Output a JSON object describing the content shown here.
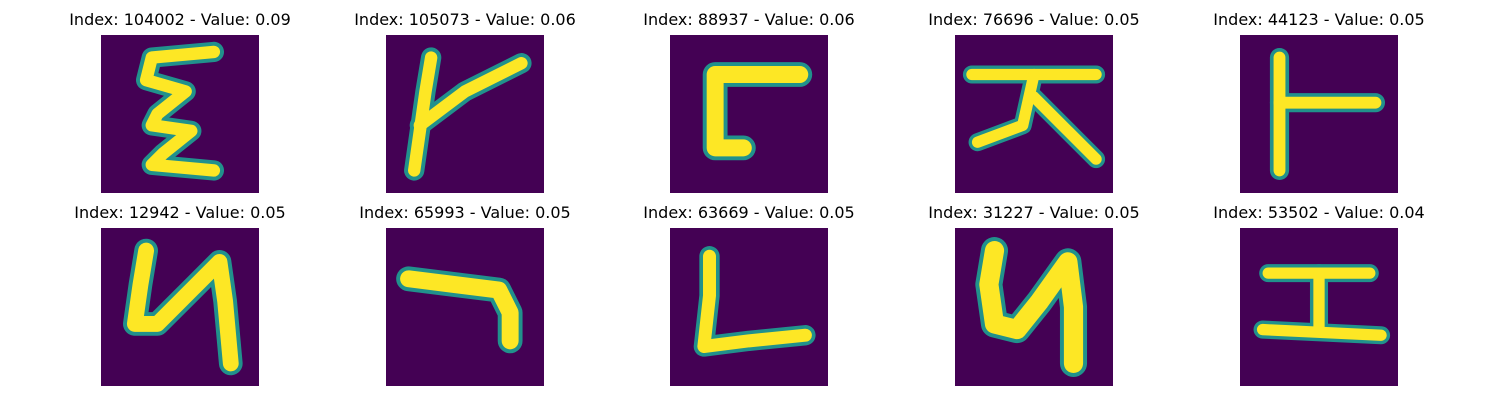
{
  "chart_data": {
    "type": "image-grid",
    "rows": 2,
    "cols": 5,
    "colors": {
      "background": "#440154",
      "stroke": "#fde725",
      "edge": "#21918c"
    },
    "panels": [
      {
        "title": "Index: 104002 - Value: 0.09",
        "index": 104002,
        "value": 0.09,
        "glyph": "Ɛ"
      },
      {
        "title": "Index: 105073 - Value: 0.06",
        "index": 105073,
        "value": 0.06,
        "glyph": "K"
      },
      {
        "title": "Index: 88937 - Value: 0.06",
        "index": 88937,
        "value": 0.06,
        "glyph": "Ⅽ"
      },
      {
        "title": "Index: 76696 - Value: 0.05",
        "index": 76696,
        "value": 0.05,
        "glyph": "天"
      },
      {
        "title": "Index: 44123 - Value: 0.05",
        "index": 44123,
        "value": 0.05,
        "glyph": "⊢"
      },
      {
        "title": "Index: 12942 - Value: 0.05",
        "index": 12942,
        "value": 0.05,
        "glyph": "ᑌ"
      },
      {
        "title": "Index: 65993 - Value: 0.05",
        "index": 65993,
        "value": 0.05,
        "glyph": "¬"
      },
      {
        "title": "Index: 63669 - Value: 0.05",
        "index": 63669,
        "value": 0.05,
        "glyph": "L"
      },
      {
        "title": "Index: 31227 - Value: 0.05",
        "index": 31227,
        "value": 0.05,
        "glyph": "ᑌ"
      },
      {
        "title": "Index: 53502 - Value: 0.04",
        "index": 53502,
        "value": 0.04,
        "glyph": "I"
      }
    ]
  }
}
